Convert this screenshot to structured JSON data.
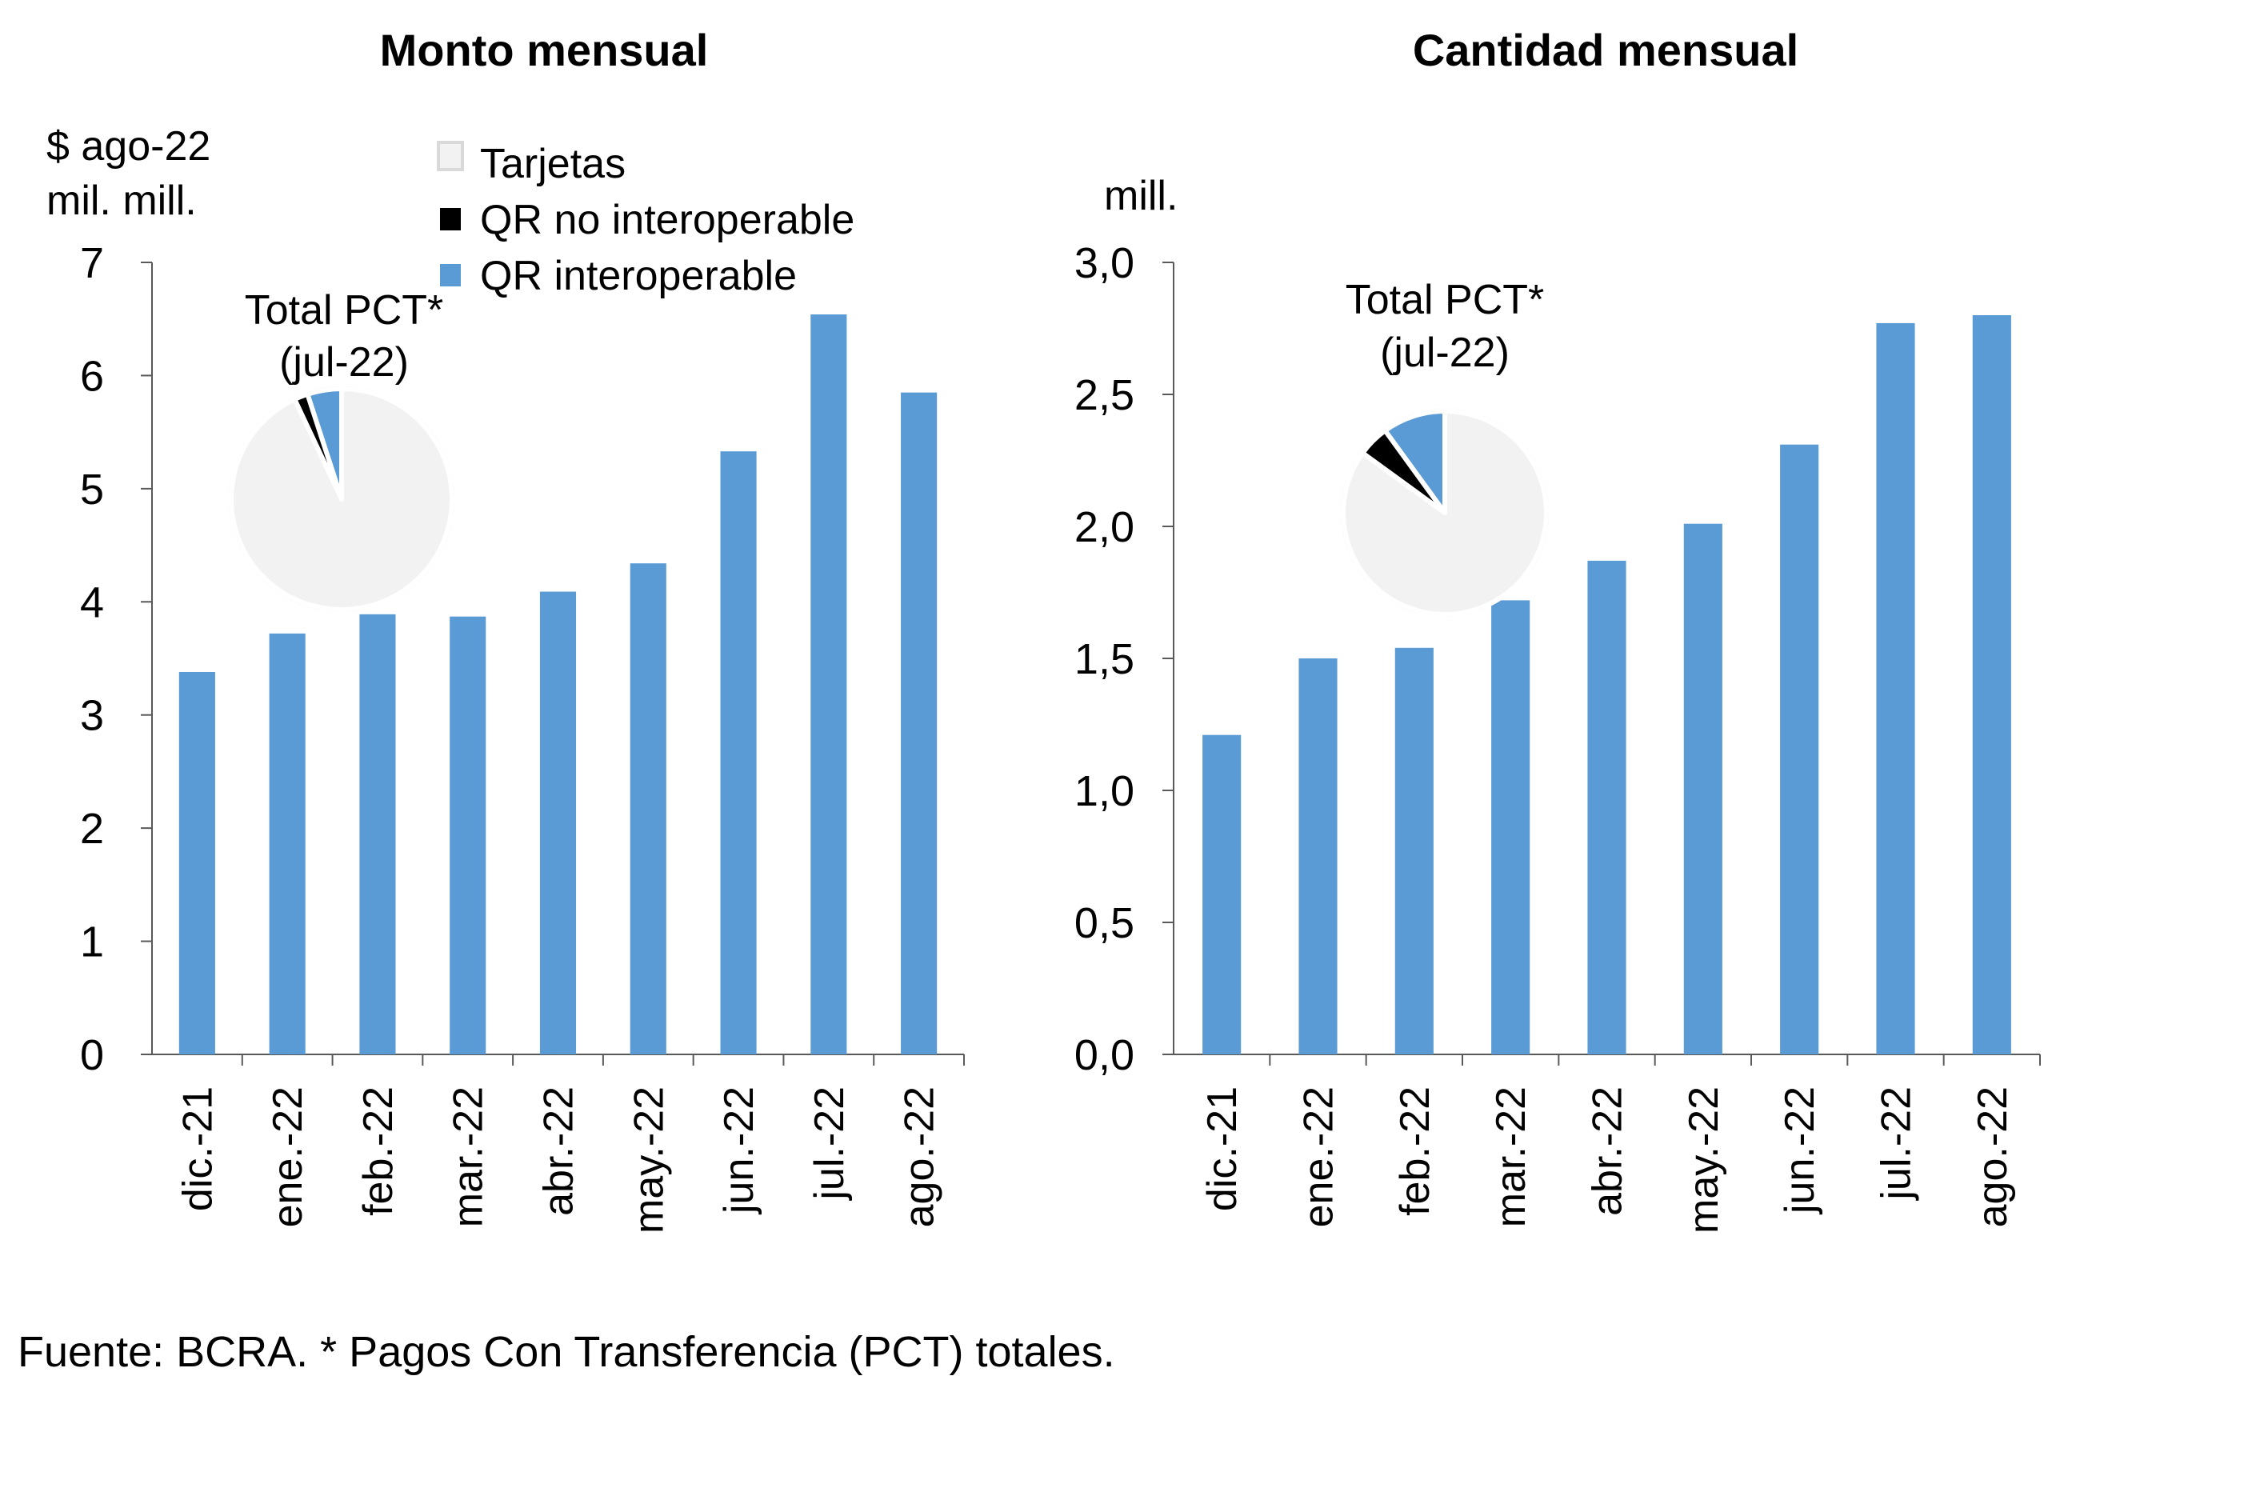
{
  "chart_data": [
    {
      "type": "bar",
      "title": "Monto mensual",
      "ylabel": "$ ago-22\nmil. mill.",
      "ylabel_lines": [
        "$ ago-22",
        "mil. mill."
      ],
      "xlabel": "",
      "categories": [
        "dic.-21",
        "ene.-22",
        "feb.-22",
        "mar.-22",
        "abr.-22",
        "may.-22",
        "jun.-22",
        "jul.-22",
        "ago.-22"
      ],
      "values": [
        3.38,
        3.72,
        3.89,
        3.87,
        4.09,
        4.34,
        5.33,
        6.54,
        5.85
      ],
      "ylim": [
        0,
        7
      ],
      "yticks": [
        0,
        1,
        2,
        3,
        4,
        5,
        6,
        7
      ],
      "ytick_labels": [
        "0",
        "1",
        "2",
        "3",
        "4",
        "5",
        "6",
        "7"
      ],
      "bar_color": "#5B9BD5",
      "grid": false,
      "inset_pie": {
        "title_lines": [
          "Total PCT*",
          "(jul-22)"
        ],
        "slices": [
          {
            "name": "QR interoperable",
            "value": 5,
            "color": "#5B9BD5"
          },
          {
            "name": "QR no interoperable",
            "value": 2,
            "color": "#000000"
          },
          {
            "name": "Tarjetas",
            "value": 93,
            "color": "#F2F2F2"
          }
        ]
      }
    },
    {
      "type": "bar",
      "title": "Cantidad mensual",
      "ylabel": "mill.",
      "ylabel_lines": [
        "mill."
      ],
      "xlabel": "",
      "categories": [
        "dic.-21",
        "ene.-22",
        "feb.-22",
        "mar.-22",
        "abr.-22",
        "may.-22",
        "jun.-22",
        "jul.-22",
        "ago.-22"
      ],
      "values": [
        1.21,
        1.5,
        1.54,
        1.72,
        1.87,
        2.01,
        2.31,
        2.77,
        2.8
      ],
      "ylim": [
        0,
        3
      ],
      "yticks": [
        0,
        0.5,
        1,
        1.5,
        2,
        2.5,
        3
      ],
      "ytick_labels": [
        "0,0",
        "0,5",
        "1,0",
        "1,5",
        "2,0",
        "2,5",
        "3,0"
      ],
      "bar_color": "#5B9BD5",
      "grid": false,
      "inset_pie": {
        "title_lines": [
          "Total PCT*",
          "(jul-22)"
        ],
        "slices": [
          {
            "name": "QR interoperable",
            "value": 10,
            "color": "#5B9BD5"
          },
          {
            "name": "QR no interoperable",
            "value": 5,
            "color": "#000000"
          },
          {
            "name": "Tarjetas",
            "value": 85,
            "color": "#F2F2F2"
          }
        ]
      }
    }
  ],
  "legend": {
    "placement": "top-center",
    "items": [
      {
        "label": "Tarjetas",
        "color": "#F2F2F2"
      },
      {
        "label": "QR no interoperable",
        "color": "#000000"
      },
      {
        "label": "QR interoperable",
        "color": "#5B9BD5"
      }
    ]
  },
  "footer": "Fuente: BCRA. * Pagos Con Transferencia (PCT) totales."
}
